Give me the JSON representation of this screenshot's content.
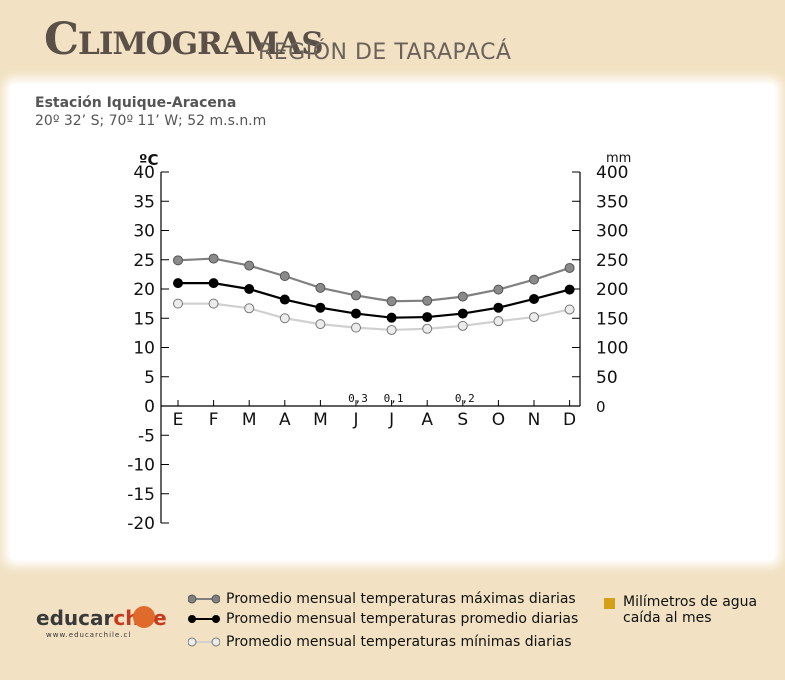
{
  "header": {
    "title": "Climogramas",
    "subtitle": "REGIÓN DE TARAPACÁ"
  },
  "station": {
    "name": "Estación Iquique-Aracena",
    "coords": "20º 32’ S; 70º 11’ W; 52 m.s.n.m"
  },
  "chart_data": {
    "type": "line",
    "categories": [
      "E",
      "F",
      "M",
      "A",
      "M",
      "J",
      "J",
      "A",
      "S",
      "O",
      "N",
      "D"
    ],
    "y_left": {
      "label": "ºC",
      "ticks": [
        40,
        35,
        30,
        25,
        20,
        15,
        10,
        5,
        0,
        -5,
        -10,
        -15,
        -20
      ],
      "range": [
        -20,
        40
      ]
    },
    "y_right": {
      "label": "mm",
      "ticks": [
        400,
        350,
        300,
        250,
        200,
        150,
        100,
        50,
        0
      ],
      "range": [
        0,
        400
      ]
    },
    "series": [
      {
        "name": "Promedio mensual temperaturas máximas diarias",
        "values": [
          24.9,
          25.2,
          24.0,
          22.2,
          20.2,
          18.9,
          17.9,
          18.0,
          18.7,
          19.9,
          21.6,
          23.6
        ],
        "color": "#808080"
      },
      {
        "name": "Promedio mensual temperaturas promedio diarias",
        "values": [
          21.0,
          21.0,
          20.0,
          18.2,
          16.8,
          15.8,
          15.1,
          15.2,
          15.8,
          16.8,
          18.3,
          19.9
        ],
        "color": "#000000"
      },
      {
        "name": "Promedio mensual temperaturas mínimas diarias",
        "values": [
          17.5,
          17.5,
          16.7,
          15.0,
          14.0,
          13.4,
          13.0,
          13.2,
          13.7,
          14.5,
          15.2,
          16.5
        ],
        "color": "#d0d0d0"
      }
    ],
    "precip_labels": [
      {
        "month_index": 5,
        "label": "0,3"
      },
      {
        "month_index": 6,
        "label": "0,1"
      },
      {
        "month_index": 8,
        "label": "0,2"
      }
    ]
  },
  "legend": {
    "max": "Promedio mensual temperaturas máximas diarias",
    "avg": "Promedio mensual temperaturas promedio diarias",
    "min": "Promedio mensual temperaturas mínimas diarias",
    "mm_line1": "Milímetros de agua",
    "mm_line2": "caída al mes"
  },
  "logo": {
    "text_a": "educar",
    "text_b": "chile",
    "url": "www.educarchile.cl"
  }
}
